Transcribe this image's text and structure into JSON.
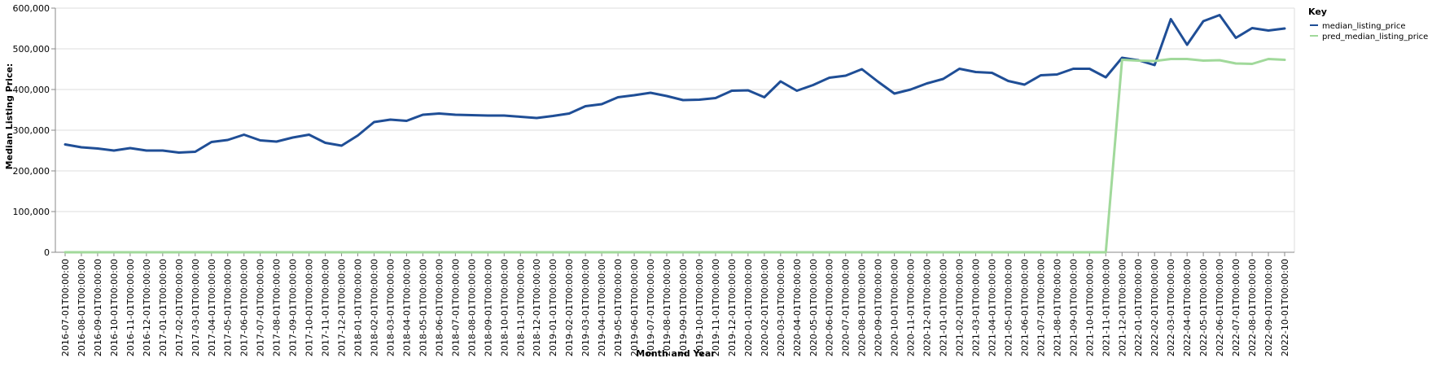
{
  "chart_data": {
    "type": "line",
    "title": "",
    "xlabel": "Month and Year",
    "ylabel": "Median Listing Price:",
    "ylim": [
      0,
      600000
    ],
    "y_ticks": [
      0,
      100000,
      200000,
      300000,
      400000,
      500000,
      600000
    ],
    "y_tick_labels": [
      "0",
      "100,000",
      "200,000",
      "300,000",
      "400,000",
      "500,000",
      "600,000"
    ],
    "grid": true,
    "legend": {
      "title": "Key",
      "position": "top-right"
    },
    "x": [
      "2016-07-01T00:00:00",
      "2016-08-01T00:00:00",
      "2016-09-01T00:00:00",
      "2016-10-01T00:00:00",
      "2016-11-01T00:00:00",
      "2016-12-01T00:00:00",
      "2017-01-01T00:00:00",
      "2017-02-01T00:00:00",
      "2017-03-01T00:00:00",
      "2017-04-01T00:00:00",
      "2017-05-01T00:00:00",
      "2017-06-01T00:00:00",
      "2017-07-01T00:00:00",
      "2017-08-01T00:00:00",
      "2017-09-01T00:00:00",
      "2017-10-01T00:00:00",
      "2017-11-01T00:00:00",
      "2017-12-01T00:00:00",
      "2018-01-01T00:00:00",
      "2018-02-01T00:00:00",
      "2018-03-01T00:00:00",
      "2018-04-01T00:00:00",
      "2018-05-01T00:00:00",
      "2018-06-01T00:00:00",
      "2018-07-01T00:00:00",
      "2018-08-01T00:00:00",
      "2018-09-01T00:00:00",
      "2018-10-01T00:00:00",
      "2018-11-01T00:00:00",
      "2018-12-01T00:00:00",
      "2019-01-01T00:00:00",
      "2019-02-01T00:00:00",
      "2019-03-01T00:00:00",
      "2019-04-01T00:00:00",
      "2019-05-01T00:00:00",
      "2019-06-01T00:00:00",
      "2019-07-01T00:00:00",
      "2019-08-01T00:00:00",
      "2019-09-01T00:00:00",
      "2019-10-01T00:00:00",
      "2019-11-01T00:00:00",
      "2019-12-01T00:00:00",
      "2020-01-01T00:00:00",
      "2020-02-01T00:00:00",
      "2020-03-01T00:00:00",
      "2020-04-01T00:00:00",
      "2020-05-01T00:00:00",
      "2020-06-01T00:00:00",
      "2020-07-01T00:00:00",
      "2020-08-01T00:00:00",
      "2020-09-01T00:00:00",
      "2020-10-01T00:00:00",
      "2020-11-01T00:00:00",
      "2020-12-01T00:00:00",
      "2021-01-01T00:00:00",
      "2021-02-01T00:00:00",
      "2021-03-01T00:00:00",
      "2021-04-01T00:00:00",
      "2021-05-01T00:00:00",
      "2021-06-01T00:00:00",
      "2021-07-01T00:00:00",
      "2021-08-01T00:00:00",
      "2021-09-01T00:00:00",
      "2021-10-01T00:00:00",
      "2021-11-01T00:00:00",
      "2021-12-01T00:00:00",
      "2022-01-01T00:00:00",
      "2022-02-01T00:00:00",
      "2022-03-01T00:00:00",
      "2022-04-01T00:00:00",
      "2022-05-01T00:00:00",
      "2022-06-01T00:00:00",
      "2022-07-01T00:00:00",
      "2022-08-01T00:00:00",
      "2022-09-01T00:00:00",
      "2022-10-01T00:00:00"
    ],
    "series": [
      {
        "name": "median_listing_price",
        "color": "#1f4e96",
        "values": [
          265000,
          258000,
          255000,
          250000,
          256000,
          250000,
          250000,
          245000,
          247000,
          271000,
          276000,
          289000,
          275000,
          272000,
          282000,
          289000,
          269000,
          262000,
          287000,
          320000,
          326000,
          323000,
          338000,
          341000,
          338000,
          337000,
          336000,
          336000,
          333000,
          330000,
          335000,
          341000,
          359000,
          364000,
          381000,
          386000,
          392000,
          384000,
          374000,
          375000,
          379000,
          397000,
          398000,
          381000,
          420000,
          397000,
          411000,
          429000,
          434000,
          450000,
          419000,
          390000,
          400000,
          415000,
          426000,
          451000,
          443000,
          441000,
          421000,
          412000,
          435000,
          437000,
          451000,
          451000,
          430000,
          478000,
          472000,
          460000,
          573000,
          510000,
          568000,
          583000,
          527000,
          551000,
          545000,
          550000
        ]
      },
      {
        "name": "pred_median_listing_price",
        "color": "#a1d99b",
        "values": [
          0,
          0,
          0,
          0,
          0,
          0,
          0,
          0,
          0,
          0,
          0,
          0,
          0,
          0,
          0,
          0,
          0,
          0,
          0,
          0,
          0,
          0,
          0,
          0,
          0,
          0,
          0,
          0,
          0,
          0,
          0,
          0,
          0,
          0,
          0,
          0,
          0,
          0,
          0,
          0,
          0,
          0,
          0,
          0,
          0,
          0,
          0,
          0,
          0,
          0,
          0,
          0,
          0,
          0,
          0,
          0,
          0,
          0,
          0,
          0,
          0,
          0,
          0,
          0,
          0,
          473000,
          471000,
          470000,
          475000,
          475000,
          471000,
          472000,
          464000,
          463000,
          475000,
          473000
        ]
      }
    ]
  }
}
